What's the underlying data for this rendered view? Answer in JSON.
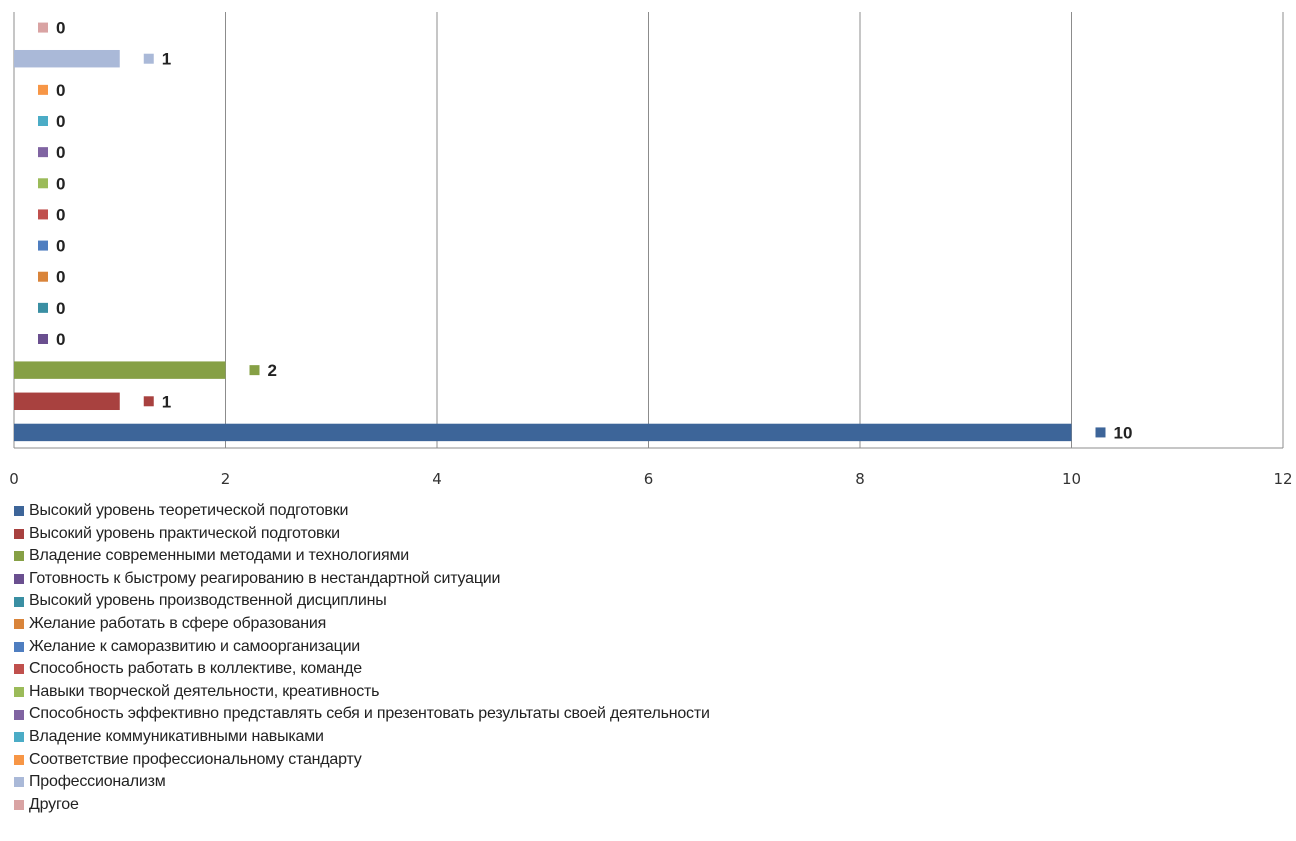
{
  "chart_data": {
    "type": "bar",
    "orientation": "horizontal",
    "title": "",
    "xlabel": "",
    "ylabel": "",
    "xlim": [
      0,
      12
    ],
    "x_ticks": [
      0,
      2,
      4,
      6,
      8,
      10,
      12
    ],
    "grid": true,
    "legend_position": "bottom",
    "series": [
      {
        "name": "Высокий уровень теоретической подготовки",
        "value": 10,
        "color": "#3D6599"
      },
      {
        "name": "Высокий уровень практической подготовки",
        "value": 1,
        "color": "#A8413F"
      },
      {
        "name": "Владение современными методами и технологиями",
        "value": 2,
        "color": "#86A045"
      },
      {
        "name": "Готовность к быстрому реагированию в нестандартной ситуации",
        "value": 0,
        "color": "#6A4F8F"
      },
      {
        "name": "Высокий уровень производственной дисциплины",
        "value": 0,
        "color": "#3A8FA3"
      },
      {
        "name": "Желание работать в сфере образования",
        "value": 0,
        "color": "#D9843A"
      },
      {
        "name": "Желание к саморазвитию и самоорганизации",
        "value": 0,
        "color": "#4F7EC0"
      },
      {
        "name": "Способность работать в коллективе, команде",
        "value": 0,
        "color": "#C0504D"
      },
      {
        "name": "Навыки творческой деятельности, креативность",
        "value": 0,
        "color": "#9BBB59"
      },
      {
        "name": "Способность эффективно представлять себя и презентовать результаты своей деятельности",
        "value": 0,
        "color": "#8064A2"
      },
      {
        "name": "Владение коммуникативными навыками",
        "value": 0,
        "color": "#4BACC6"
      },
      {
        "name": "Соответствие профессиональному стандарту",
        "value": 0,
        "color": "#F79646"
      },
      {
        "name": "Профессионализм",
        "value": 1,
        "color": "#AAB9D8"
      },
      {
        "name": "Другое",
        "value": 0,
        "color": "#D9A3A3"
      }
    ]
  }
}
